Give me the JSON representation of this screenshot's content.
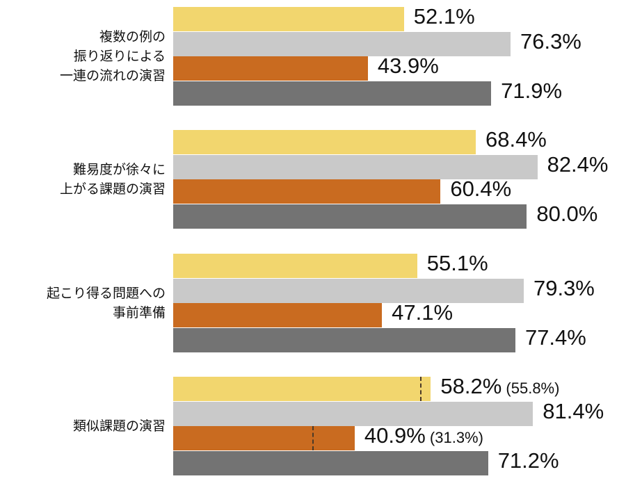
{
  "chart_data": {
    "type": "bar",
    "orientation": "horizontal",
    "title": "",
    "xlabel": "",
    "ylabel": "",
    "xlim": [
      0,
      100
    ],
    "grid": false,
    "legend": null,
    "categories": [
      "複数の例の振り返りによる一連の流れの演習",
      "難易度が徐々に上がる課題の演習",
      "起こり得る問題への事前準備",
      "類似課題の演習"
    ],
    "series": [
      {
        "name": "series1",
        "color": "#F2D66E",
        "values": [
          52.1,
          68.4,
          55.1,
          58.2
        ]
      },
      {
        "name": "series2",
        "color": "#C9C9C9",
        "values": [
          76.3,
          82.4,
          79.3,
          81.4
        ]
      },
      {
        "name": "series3",
        "color": "#C96B20",
        "values": [
          43.9,
          60.4,
          47.1,
          40.9
        ]
      },
      {
        "name": "series4",
        "color": "#737373",
        "values": [
          71.9,
          80.0,
          77.4,
          71.2
        ]
      }
    ],
    "annotations": [
      {
        "category": "類似課題の演習",
        "series": "series1",
        "reference_value": 55.8,
        "label": "(55.8%)",
        "style": "dashed-marker"
      },
      {
        "category": "類似課題の演習",
        "series": "series3",
        "reference_value": 31.3,
        "label": "(31.3%)",
        "style": "dashed-marker"
      }
    ]
  },
  "groups": [
    {
      "label_lines": [
        "複数の例の",
        "振り返りによる",
        "一連の流れの演習"
      ],
      "bars": [
        {
          "value": 52.1,
          "label": "52.1%",
          "sub": ""
        },
        {
          "value": 76.3,
          "label": "76.3%",
          "sub": ""
        },
        {
          "value": 43.9,
          "label": "43.9%",
          "sub": ""
        },
        {
          "value": 71.9,
          "label": "71.9%",
          "sub": ""
        }
      ]
    },
    {
      "label_lines": [
        "難易度が徐々に",
        "上がる課題の演習"
      ],
      "bars": [
        {
          "value": 68.4,
          "label": "68.4%",
          "sub": ""
        },
        {
          "value": 82.4,
          "label": "82.4%",
          "sub": ""
        },
        {
          "value": 60.4,
          "label": "60.4%",
          "sub": ""
        },
        {
          "value": 80.0,
          "label": "80.0%",
          "sub": ""
        }
      ]
    },
    {
      "label_lines": [
        "起こり得る問題への",
        "事前準備"
      ],
      "bars": [
        {
          "value": 55.1,
          "label": "55.1%",
          "sub": ""
        },
        {
          "value": 79.3,
          "label": "79.3%",
          "sub": ""
        },
        {
          "value": 47.1,
          "label": "47.1%",
          "sub": ""
        },
        {
          "value": 77.4,
          "label": "77.4%",
          "sub": ""
        }
      ]
    },
    {
      "label_lines": [
        "類似課題の演習"
      ],
      "bars": [
        {
          "value": 58.2,
          "label": "58.2%",
          "sub": "(55.8%)",
          "marker": 55.8
        },
        {
          "value": 81.4,
          "label": "81.4%",
          "sub": ""
        },
        {
          "value": 40.9,
          "label": "40.9%",
          "sub": "(31.3%)",
          "marker": 31.3
        },
        {
          "value": 71.2,
          "label": "71.2%",
          "sub": ""
        }
      ]
    }
  ],
  "colors": [
    "#F2D66E",
    "#C9C9C9",
    "#C96B20",
    "#737373"
  ]
}
